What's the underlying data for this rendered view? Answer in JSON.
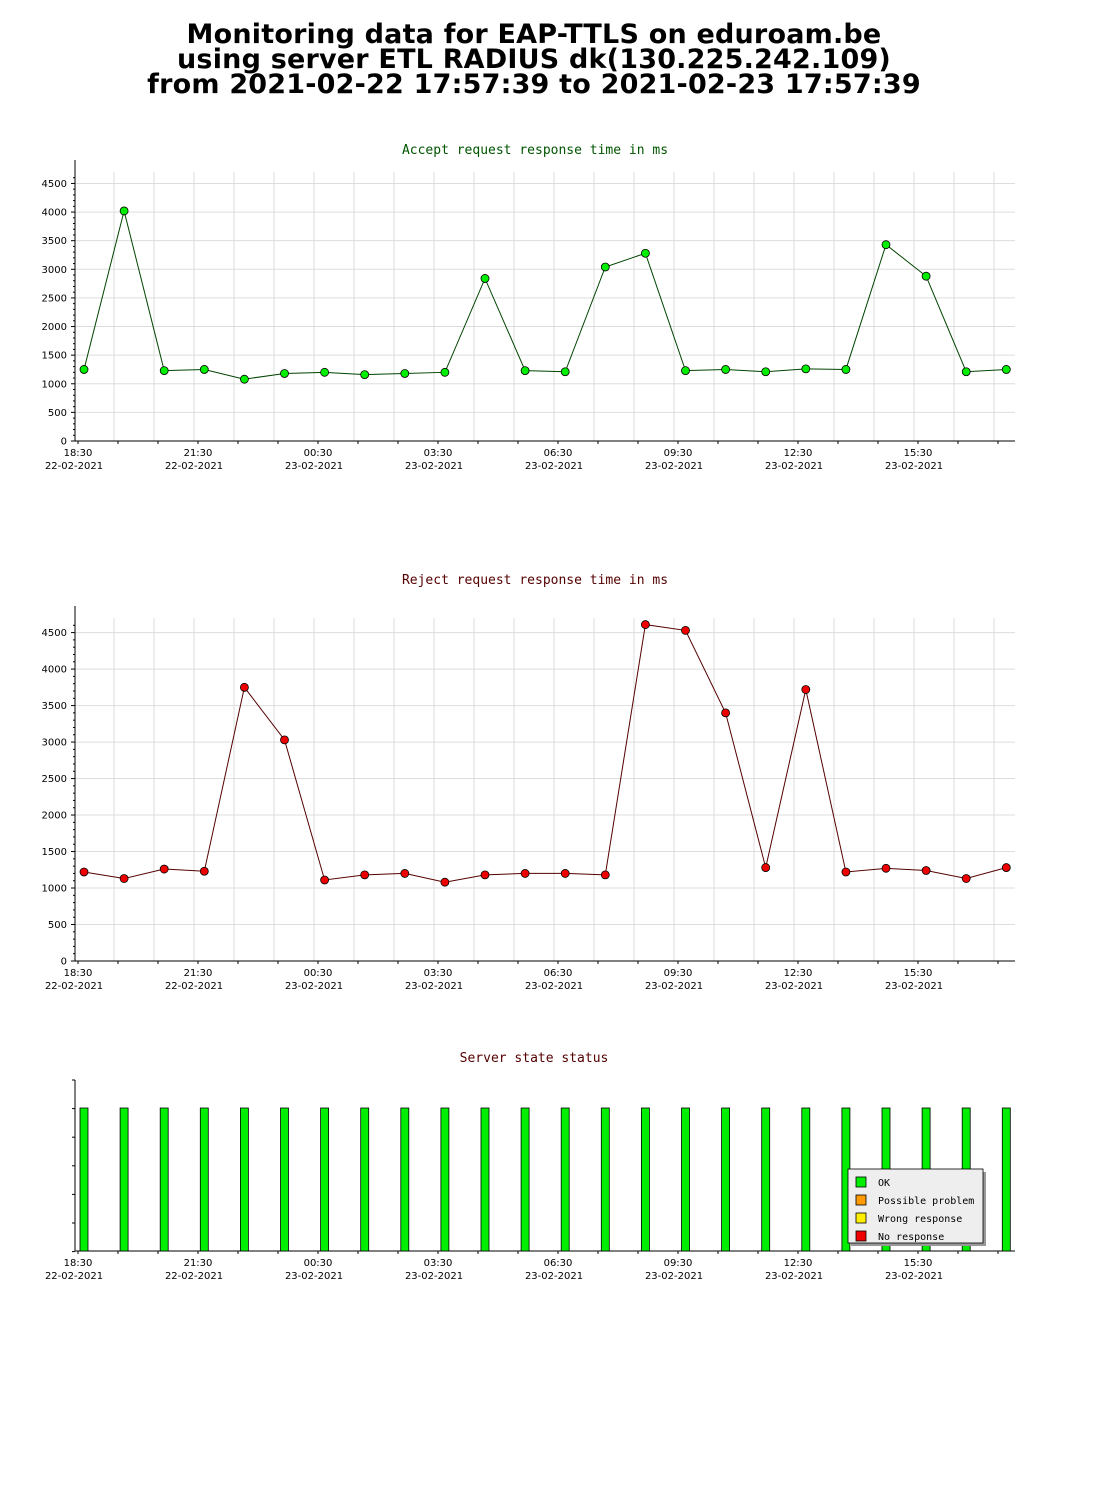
{
  "header": {
    "line1": "Monitoring data for EAP-TTLS on eduroam.be",
    "line2": "using server ETL RADIUS dk(130.225.242.109)",
    "line3": "from 2021-02-22 17:57:39 to 2021-02-23 17:57:39"
  },
  "chart_data": [
    {
      "type": "line",
      "title": "Accept request response time in ms",
      "title_color": "#005500",
      "marker_color": "#00ee00",
      "line_color": "#004400",
      "ylim": [
        0,
        4700
      ],
      "yticks": [
        0,
        500,
        1000,
        1500,
        2000,
        2500,
        3000,
        3500,
        4000,
        4500
      ],
      "x_hours": [
        0,
        1,
        2,
        3,
        4,
        5,
        6,
        7,
        8,
        9,
        10,
        11,
        12,
        13,
        14,
        15,
        16,
        17,
        18,
        19,
        20,
        21,
        22,
        23
      ],
      "values": [
        1250,
        4020,
        1230,
        1250,
        1080,
        1180,
        1200,
        1160,
        1180,
        1200,
        2840,
        1230,
        1210,
        3040,
        3280,
        1230,
        1250,
        1210,
        1260,
        1250,
        3430,
        2880,
        1210,
        1250
      ],
      "xticks": [
        {
          "label": "18:30",
          "date": "22-02-2021"
        },
        {
          "label": "21:30",
          "date": "22-02-2021"
        },
        {
          "label": "00:30",
          "date": "23-02-2021"
        },
        {
          "label": "03:30",
          "date": "23-02-2021"
        },
        {
          "label": "06:30",
          "date": "23-02-2021"
        },
        {
          "label": "09:30",
          "date": "23-02-2021"
        },
        {
          "label": "12:30",
          "date": "23-02-2021"
        },
        {
          "label": "15:30",
          "date": "23-02-2021"
        }
      ],
      "grid": true
    },
    {
      "type": "line",
      "title": "Reject request response time in ms",
      "title_color": "#550000",
      "marker_color": "#ee0000",
      "line_color": "#550000",
      "ylim": [
        0,
        4700
      ],
      "yticks": [
        0,
        500,
        1000,
        1500,
        2000,
        2500,
        3000,
        3500,
        4000,
        4500
      ],
      "x_hours": [
        0,
        1,
        2,
        3,
        4,
        5,
        6,
        7,
        8,
        9,
        10,
        11,
        12,
        13,
        14,
        15,
        16,
        17,
        18,
        19,
        20,
        21,
        22,
        23
      ],
      "values": [
        1220,
        1130,
        1260,
        1230,
        3750,
        3030,
        1110,
        1180,
        1200,
        1080,
        1180,
        1200,
        1200,
        1180,
        4610,
        4530,
        3400,
        1280,
        3720,
        1220,
        1270,
        1240,
        1130,
        1280
      ],
      "xticks": [
        {
          "label": "18:30",
          "date": "22-02-2021"
        },
        {
          "label": "21:30",
          "date": "22-02-2021"
        },
        {
          "label": "00:30",
          "date": "23-02-2021"
        },
        {
          "label": "03:30",
          "date": "23-02-2021"
        },
        {
          "label": "06:30",
          "date": "23-02-2021"
        },
        {
          "label": "09:30",
          "date": "23-02-2021"
        },
        {
          "label": "12:30",
          "date": "23-02-2021"
        },
        {
          "label": "15:30",
          "date": "23-02-2021"
        }
      ],
      "grid": true
    },
    {
      "type": "bar",
      "title": "Server state status",
      "title_color": "#550000",
      "x_hours": [
        0,
        1,
        2,
        3,
        4,
        5,
        6,
        7,
        8,
        9,
        10,
        11,
        12,
        13,
        14,
        15,
        16,
        17,
        18,
        19,
        20,
        21,
        22,
        23
      ],
      "states": [
        "OK",
        "OK",
        "OK",
        "OK",
        "OK",
        "OK",
        "OK",
        "OK",
        "OK",
        "OK",
        "OK",
        "OK",
        "OK",
        "OK",
        "OK",
        "OK",
        "OK",
        "OK",
        "OK",
        "OK",
        "OK",
        "OK",
        "OK",
        "OK"
      ],
      "xticks": [
        {
          "label": "18:30",
          "date": "22-02-2021"
        },
        {
          "label": "21:30",
          "date": "22-02-2021"
        },
        {
          "label": "00:30",
          "date": "23-02-2021"
        },
        {
          "label": "03:30",
          "date": "23-02-2021"
        },
        {
          "label": "06:30",
          "date": "23-02-2021"
        },
        {
          "label": "09:30",
          "date": "23-02-2021"
        },
        {
          "label": "12:30",
          "date": "23-02-2021"
        },
        {
          "label": "15:30",
          "date": "23-02-2021"
        }
      ],
      "legend": [
        {
          "label": "OK",
          "color": "#00ee00"
        },
        {
          "label": "Possible problem",
          "color": "#ff9900"
        },
        {
          "label": "Wrong response",
          "color": "#ffee00"
        },
        {
          "label": "No response",
          "color": "#ee0000"
        }
      ],
      "legend_position": "bottom-right",
      "grid": false
    }
  ]
}
